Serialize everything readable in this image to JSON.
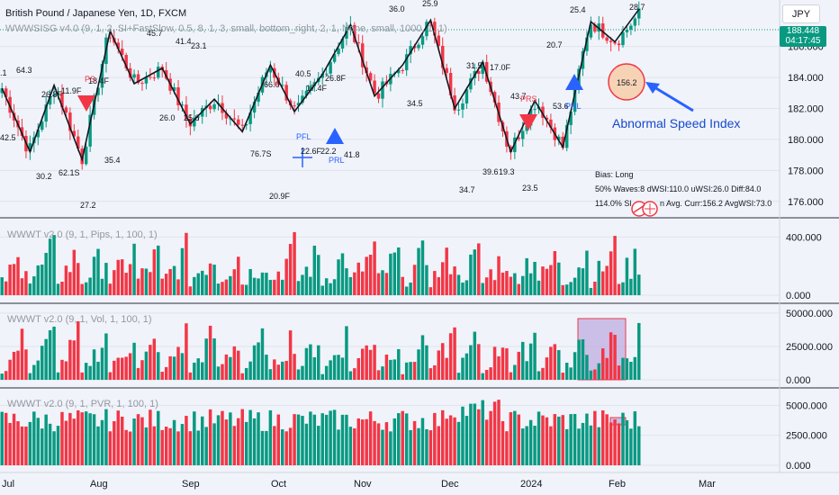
{
  "header": {
    "symbol_title": "British Pound / Japanese Yen, 1D, FXCM",
    "indicator_title": "WWWSISG v4.0 (9, 1, 2, SI+FastSlow, 0.5, 8, 1, 3, small, bottom_right, 2, 1, None, small, 1000, 1, 1)"
  },
  "currency_button": "JPY",
  "price_tag": {
    "price": "188.448",
    "countdown": "04:17:45"
  },
  "colors": {
    "up": "#089981",
    "down": "#f23645",
    "wave": "#131722",
    "annotation": "#2962ff",
    "highlight": "#b39ddb"
  },
  "main_axis": {
    "ticks": [
      "186.000",
      "184.000",
      "182.000",
      "180.000",
      "178.000",
      "176.000"
    ],
    "tick_values": [
      186,
      184,
      182,
      180,
      178,
      176
    ],
    "ylim": [
      175.0,
      189.0
    ]
  },
  "x_axis": {
    "labels": [
      "Jul",
      "Aug",
      "Sep",
      "Oct",
      "Nov",
      "Dec",
      "2024",
      "Feb",
      "Mar"
    ]
  },
  "wave_labels": [
    "36.0",
    "25.9",
    "25.4",
    "28.7",
    "45.7",
    "41.4",
    "23.1",
    "40.5",
    "26.8F",
    "66.0",
    "17.4F",
    "31.5",
    "17.0F",
    "20.7",
    "64.3",
    "26.8F",
    "11.9F",
    "18.4F",
    "34.5",
    "43.7",
    "53.6",
    "26.0",
    "25.6",
    "42.5",
    "30.2",
    "62.1S",
    "35.4",
    "76.7S",
    "22.6F",
    "22.2",
    "41.8",
    "20.9F",
    "39.6",
    "19.3",
    "23.5",
    "34.7",
    "27.2",
    ".1",
    "PS",
    "PRS",
    "PFL",
    "PRL",
    "PRL"
  ],
  "annotation": {
    "speed_value": "156.2",
    "text": "Abnormal Speed Index"
  },
  "info_panel": {
    "line1": "Bias: Long",
    "line2": "50% Waves:8 dWSI:110.0 uWSI:26.0 Diff:84.0",
    "line3_left": "114.0% Sl",
    "line3_right": "n Avg. Curr:156.2 AvgWSI:73.0"
  },
  "panes": [
    {
      "title": "WWWT v2.0 (9, 1, Pips, 1, 100, 1)",
      "ticks": [
        "400.000",
        "0.000"
      ],
      "tick_values": [
        400,
        0
      ],
      "ymax": 520
    },
    {
      "title": "WWWT v2.0 (9, 1, Vol, 1, 100, 1)",
      "ticks": [
        "50000.000",
        "25000.000",
        "0.000"
      ],
      "tick_values": [
        50000,
        25000,
        0
      ],
      "ymax": 56000
    },
    {
      "title": "WWWT v2.0 (9, 1, PVR, 1, 100, 1)",
      "ticks": [
        "5000.000",
        "2500.000",
        "0.000"
      ],
      "tick_values": [
        5000,
        2500,
        0
      ],
      "ymax": 6300
    }
  ],
  "chart_data": {
    "type": "candlestick",
    "title": "British Pound / Japanese Yen, 1D, FXCM",
    "ylim": [
      175.0,
      189.0
    ],
    "wave_pivots": [
      183.3,
      179.2,
      183.5,
      178.7,
      187.0,
      183.6,
      184.6,
      181.0,
      182.6,
      180.5,
      184.8,
      181.8,
      184.2,
      187.4,
      182.8,
      184.8,
      187.7,
      182.0,
      185.0,
      179.2,
      182.5,
      179.5,
      187.6,
      186.3,
      188.4
    ],
    "last_price": 188.448
  }
}
